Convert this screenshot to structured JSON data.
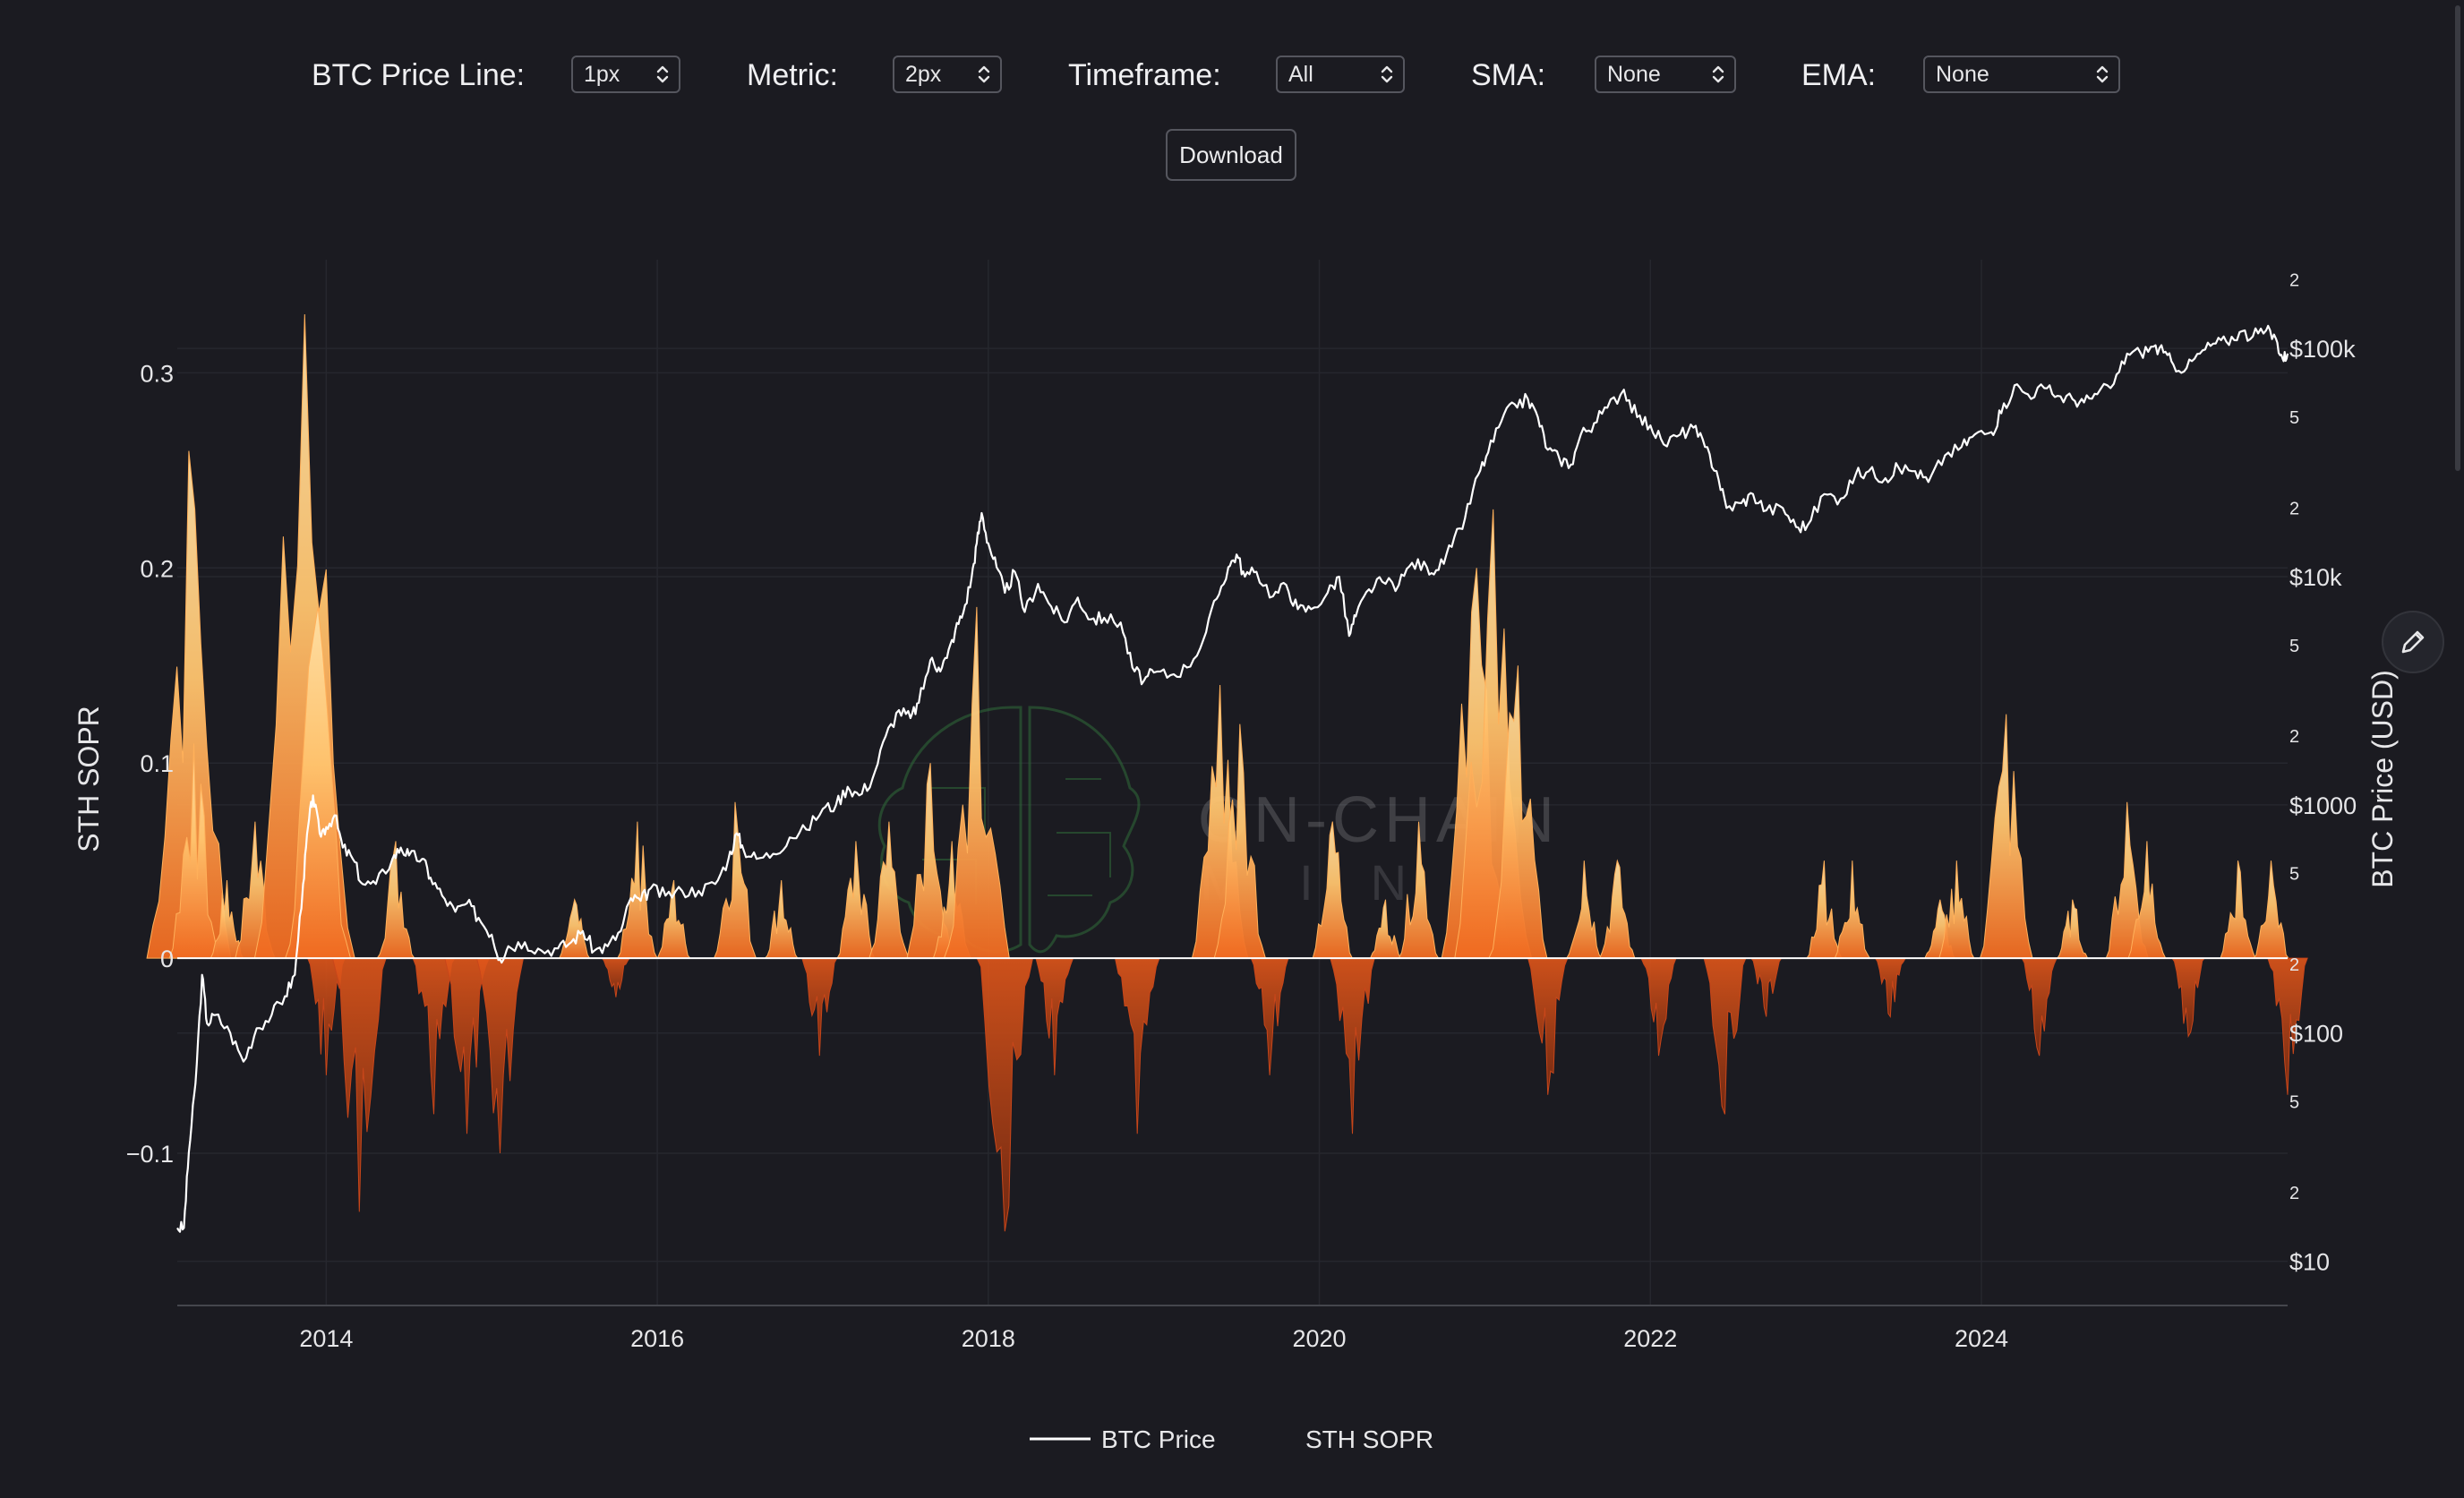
{
  "controls": [
    {
      "label": "BTC Price Line:",
      "value": "1px"
    },
    {
      "label": "Metric:",
      "value": "2px"
    },
    {
      "label": "Timeframe:",
      "value": "All"
    },
    {
      "label": "SMA:",
      "value": "None"
    },
    {
      "label": "EMA:",
      "value": "None"
    }
  ],
  "download_label": "Download",
  "watermark": {
    "line1": "ON-CHAIN",
    "line2": "MIND"
  },
  "icons": {
    "edit": "pencil-icon",
    "select": "chevron-updown-icon"
  },
  "colors": {
    "background": "#1b1b21",
    "price_line": "#ffffff",
    "sopr_positive_high": "#ffd28a",
    "sopr_positive_low": "#f0641e",
    "sopr_negative": "#d84a14",
    "zero_line": "#ffffff",
    "grid": "#26272e"
  },
  "chart_data": {
    "type": "line",
    "left_axis": {
      "label": "STH SOPR",
      "ticks": [
        {
          "value": 0.3,
          "label": "0.3"
        },
        {
          "value": 0.2,
          "label": "0.2"
        },
        {
          "value": 0.1,
          "label": "0.1"
        },
        {
          "value": 0,
          "label": "0"
        },
        {
          "value": -0.1,
          "label": "−0.1"
        }
      ],
      "range": [
        -0.178,
        0.358
      ]
    },
    "right_axis": {
      "label": "BTC Price (USD)",
      "scale": "log",
      "range": [
        6.4,
        245000
      ],
      "major_ticks": [
        {
          "value": 100000,
          "label": "$100k"
        },
        {
          "value": 10000,
          "label": "$10k"
        },
        {
          "value": 1000,
          "label": "$1000"
        },
        {
          "value": 100,
          "label": "$100"
        },
        {
          "value": 10,
          "label": "$10"
        }
      ],
      "minor_ticks": [
        {
          "value": 200000,
          "label": "2"
        },
        {
          "value": 50000,
          "label": "5"
        },
        {
          "value": 20000,
          "label": "2"
        },
        {
          "value": 5000,
          "label": "5"
        },
        {
          "value": 2000,
          "label": "2"
        },
        {
          "value": 500,
          "label": "5"
        },
        {
          "value": 200,
          "label": "2"
        },
        {
          "value": 50,
          "label": "5"
        },
        {
          "value": 20,
          "label": "2"
        }
      ]
    },
    "x_axis": {
      "range": [
        2013.1,
        2025.85
      ],
      "ticks": [
        {
          "value": 2014,
          "label": "2014"
        },
        {
          "value": 2016,
          "label": "2016"
        },
        {
          "value": 2018,
          "label": "2018"
        },
        {
          "value": 2020,
          "label": "2020"
        },
        {
          "value": 2022,
          "label": "2022"
        },
        {
          "value": 2024,
          "label": "2024"
        }
      ]
    },
    "grid": true,
    "legend": {
      "position": "bottom-center"
    },
    "series": [
      {
        "name": "BTC Price",
        "kind": "line",
        "points": [
          [
            2013.1,
            14
          ],
          [
            2013.14,
            14
          ],
          [
            2013.17,
            30
          ],
          [
            2013.21,
            60
          ],
          [
            2013.25,
            180
          ],
          [
            2013.28,
            110
          ],
          [
            2013.33,
            120
          ],
          [
            2013.42,
            100
          ],
          [
            2013.5,
            75
          ],
          [
            2013.58,
            105
          ],
          [
            2013.67,
            120
          ],
          [
            2013.75,
            145
          ],
          [
            2013.81,
            180
          ],
          [
            2013.86,
            450
          ],
          [
            2013.89,
            800
          ],
          [
            2013.92,
            1100
          ],
          [
            2013.96,
            750
          ],
          [
            2014.0,
            800
          ],
          [
            2014.05,
            900
          ],
          [
            2014.1,
            650
          ],
          [
            2014.16,
            580
          ],
          [
            2014.22,
            450
          ],
          [
            2014.3,
            450
          ],
          [
            2014.4,
            580
          ],
          [
            2014.45,
            650
          ],
          [
            2014.5,
            600
          ],
          [
            2014.58,
            580
          ],
          [
            2014.63,
            480
          ],
          [
            2014.7,
            400
          ],
          [
            2014.78,
            340
          ],
          [
            2014.85,
            370
          ],
          [
            2014.92,
            320
          ],
          [
            2015.0,
            270
          ],
          [
            2015.05,
            210
          ],
          [
            2015.1,
            240
          ],
          [
            2015.2,
            250
          ],
          [
            2015.3,
            230
          ],
          [
            2015.4,
            235
          ],
          [
            2015.48,
            250
          ],
          [
            2015.55,
            280
          ],
          [
            2015.62,
            230
          ],
          [
            2015.7,
            240
          ],
          [
            2015.78,
            280
          ],
          [
            2015.84,
            390
          ],
          [
            2015.9,
            380
          ],
          [
            2015.96,
            430
          ],
          [
            2016.05,
            400
          ],
          [
            2016.15,
            420
          ],
          [
            2016.25,
            420
          ],
          [
            2016.35,
            450
          ],
          [
            2016.43,
            580
          ],
          [
            2016.48,
            750
          ],
          [
            2016.52,
            640
          ],
          [
            2016.6,
            580
          ],
          [
            2016.7,
            610
          ],
          [
            2016.8,
            720
          ],
          [
            2016.9,
            780
          ],
          [
            2017.0,
            960
          ],
          [
            2017.08,
            1000
          ],
          [
            2017.15,
            1200
          ],
          [
            2017.22,
            1100
          ],
          [
            2017.3,
            1300
          ],
          [
            2017.38,
            2000
          ],
          [
            2017.46,
            2600
          ],
          [
            2017.53,
            2400
          ],
          [
            2017.58,
            2800
          ],
          [
            2017.65,
            4300
          ],
          [
            2017.7,
            4000
          ],
          [
            2017.75,
            4400
          ],
          [
            2017.8,
            5800
          ],
          [
            2017.85,
            7000
          ],
          [
            2017.9,
            10000
          ],
          [
            2017.93,
            14000
          ],
          [
            2017.96,
            19000
          ],
          [
            2018.0,
            14000
          ],
          [
            2018.05,
            11000
          ],
          [
            2018.1,
            8500
          ],
          [
            2018.16,
            10500
          ],
          [
            2018.22,
            7000
          ],
          [
            2018.3,
            9300
          ],
          [
            2018.38,
            7400
          ],
          [
            2018.46,
            6300
          ],
          [
            2018.54,
            8100
          ],
          [
            2018.62,
            6500
          ],
          [
            2018.7,
            6600
          ],
          [
            2018.8,
            6300
          ],
          [
            2018.87,
            4000
          ],
          [
            2018.94,
            3500
          ],
          [
            2019.0,
            3800
          ],
          [
            2019.1,
            3700
          ],
          [
            2019.2,
            4000
          ],
          [
            2019.3,
            5300
          ],
          [
            2019.38,
            8000
          ],
          [
            2019.45,
            11000
          ],
          [
            2019.5,
            12500
          ],
          [
            2019.55,
            10000
          ],
          [
            2019.62,
            10500
          ],
          [
            2019.72,
            8200
          ],
          [
            2019.8,
            9200
          ],
          [
            2019.87,
            7200
          ],
          [
            2019.95,
            7200
          ],
          [
            2020.05,
            8500
          ],
          [
            2020.12,
            10000
          ],
          [
            2020.18,
            5500
          ],
          [
            2020.22,
            6700
          ],
          [
            2020.3,
            8800
          ],
          [
            2020.38,
            9500
          ],
          [
            2020.48,
            9200
          ],
          [
            2020.56,
            11500
          ],
          [
            2020.65,
            11000
          ],
          [
            2020.72,
            10700
          ],
          [
            2020.8,
            13500
          ],
          [
            2020.88,
            18000
          ],
          [
            2020.96,
            28000
          ],
          [
            2021.02,
            35000
          ],
          [
            2021.1,
            48000
          ],
          [
            2021.18,
            57000
          ],
          [
            2021.26,
            60000
          ],
          [
            2021.32,
            50000
          ],
          [
            2021.38,
            36000
          ],
          [
            2021.45,
            33000
          ],
          [
            2021.52,
            31000
          ],
          [
            2021.58,
            42000
          ],
          [
            2021.66,
            47000
          ],
          [
            2021.74,
            55000
          ],
          [
            2021.84,
            66000
          ],
          [
            2021.92,
            50000
          ],
          [
            2022.0,
            46000
          ],
          [
            2022.08,
            38000
          ],
          [
            2022.18,
            42000
          ],
          [
            2022.26,
            45000
          ],
          [
            2022.33,
            37000
          ],
          [
            2022.4,
            29000
          ],
          [
            2022.46,
            20000
          ],
          [
            2022.55,
            21000
          ],
          [
            2022.62,
            23000
          ],
          [
            2022.7,
            19500
          ],
          [
            2022.8,
            20000
          ],
          [
            2022.88,
            16500
          ],
          [
            2022.95,
            16800
          ],
          [
            2023.05,
            23000
          ],
          [
            2023.15,
            22000
          ],
          [
            2023.24,
            28000
          ],
          [
            2023.32,
            29000
          ],
          [
            2023.42,
            27000
          ],
          [
            2023.5,
            30000
          ],
          [
            2023.6,
            29000
          ],
          [
            2023.68,
            26000
          ],
          [
            2023.78,
            34000
          ],
          [
            2023.88,
            37000
          ],
          [
            2023.96,
            42000
          ],
          [
            2024.06,
            43000
          ],
          [
            2024.12,
            52000
          ],
          [
            2024.2,
            69000
          ],
          [
            2024.28,
            63000
          ],
          [
            2024.38,
            67000
          ],
          [
            2024.46,
            62000
          ],
          [
            2024.55,
            60000
          ],
          [
            2024.62,
            58000
          ],
          [
            2024.7,
            63000
          ],
          [
            2024.8,
            70000
          ],
          [
            2024.88,
            95000
          ],
          [
            2024.96,
            96000
          ],
          [
            2025.04,
            102000
          ],
          [
            2025.1,
            96000
          ],
          [
            2025.16,
            85000
          ],
          [
            2025.24,
            82000
          ],
          [
            2025.32,
            95000
          ],
          [
            2025.4,
            105000
          ],
          [
            2025.48,
            107000
          ],
          [
            2025.56,
            118000
          ],
          [
            2025.64,
            113000
          ],
          [
            2025.72,
            120000
          ],
          [
            2025.78,
            110000
          ],
          [
            2025.82,
            90000
          ],
          [
            2025.85,
            95000
          ]
        ]
      },
      {
        "name": "STH SOPR",
        "kind": "area",
        "peaks": [
          [
            2013.17,
            0.26
          ],
          [
            2013.2,
            0.11
          ],
          [
            2013.4,
            0.04
          ],
          [
            2013.57,
            0.07
          ],
          [
            2013.87,
            0.33
          ],
          [
            2013.95,
            0.18
          ],
          [
            2014.0,
            -0.06
          ],
          [
            2014.2,
            -0.13
          ],
          [
            2014.42,
            0.06
          ],
          [
            2014.65,
            -0.08
          ],
          [
            2014.85,
            -0.09
          ],
          [
            2015.05,
            -0.1
          ],
          [
            2015.5,
            0.03
          ],
          [
            2015.75,
            -0.02
          ],
          [
            2015.88,
            0.07
          ],
          [
            2016.1,
            0.04
          ],
          [
            2016.47,
            0.08
          ],
          [
            2016.75,
            0.04
          ],
          [
            2016.98,
            -0.05
          ],
          [
            2017.2,
            0.06
          ],
          [
            2017.4,
            0.07
          ],
          [
            2017.65,
            0.1
          ],
          [
            2017.78,
            0.06
          ],
          [
            2017.93,
            0.18
          ],
          [
            2018.1,
            -0.14
          ],
          [
            2018.4,
            -0.06
          ],
          [
            2018.9,
            -0.09
          ],
          [
            2019.4,
            0.14
          ],
          [
            2019.52,
            0.12
          ],
          [
            2019.7,
            -0.06
          ],
          [
            2020.08,
            0.07
          ],
          [
            2020.2,
            -0.09
          ],
          [
            2020.4,
            0.03
          ],
          [
            2020.6,
            0.07
          ],
          [
            2020.95,
            0.2
          ],
          [
            2021.05,
            0.23
          ],
          [
            2021.2,
            0.15
          ],
          [
            2021.38,
            -0.07
          ],
          [
            2021.6,
            0.05
          ],
          [
            2021.8,
            0.05
          ],
          [
            2022.05,
            -0.05
          ],
          [
            2022.45,
            -0.08
          ],
          [
            2022.7,
            -0.03
          ],
          [
            2023.05,
            0.05
          ],
          [
            2023.22,
            0.05
          ],
          [
            2023.45,
            -0.03
          ],
          [
            2023.75,
            0.03
          ],
          [
            2023.85,
            0.05
          ],
          [
            2024.15,
            0.125
          ],
          [
            2024.35,
            -0.05
          ],
          [
            2024.55,
            0.03
          ],
          [
            2024.88,
            0.08
          ],
          [
            2025.0,
            0.06
          ],
          [
            2025.25,
            -0.04
          ],
          [
            2025.55,
            0.05
          ],
          [
            2025.75,
            0.05
          ],
          [
            2025.85,
            -0.07
          ]
        ]
      }
    ]
  }
}
